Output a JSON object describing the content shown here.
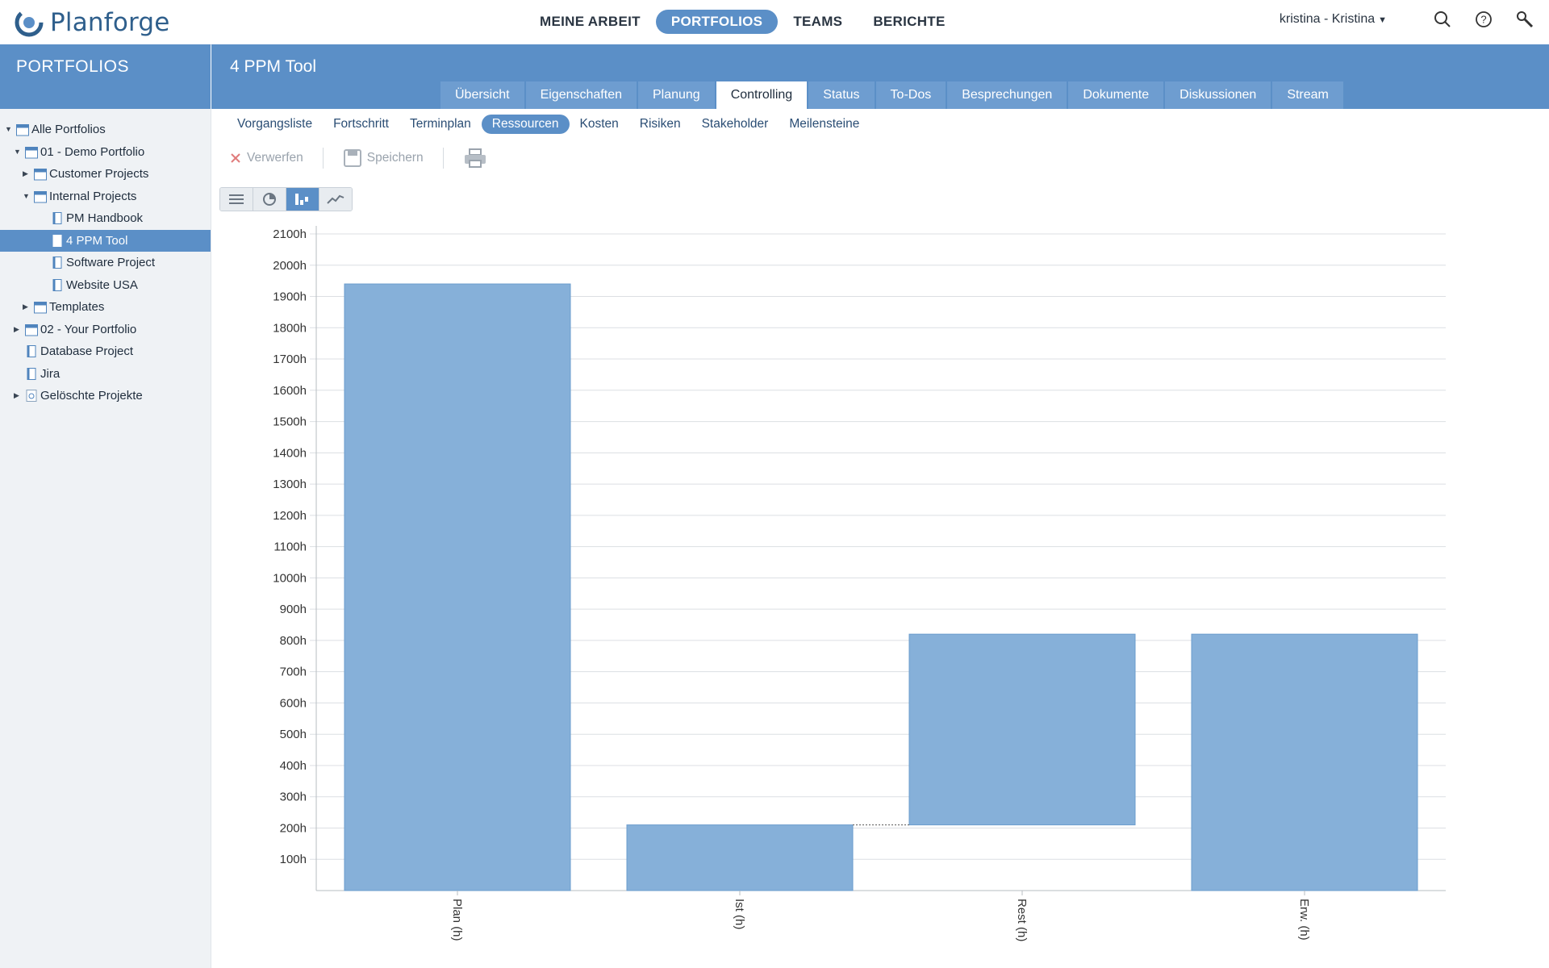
{
  "app": {
    "name": "Planforge"
  },
  "topnav": {
    "items": [
      "MEINE ARBEIT",
      "PORTFOLIOS",
      "TEAMS",
      "BERICHTE"
    ],
    "active": "PORTFOLIOS",
    "user": "kristina - Kristina"
  },
  "sidebar": {
    "title": "PORTFOLIOS",
    "tree": [
      {
        "label": "Alle Portfolios",
        "level": 0,
        "arrow": "down",
        "icon": "portfolio-icon"
      },
      {
        "label": "01 - Demo Portfolio",
        "level": 1,
        "arrow": "down",
        "icon": "portfolio-icon"
      },
      {
        "label": "Customer Projects",
        "level": 2,
        "arrow": "right",
        "icon": "portfolio-icon"
      },
      {
        "label": "Internal Projects",
        "level": 2,
        "arrow": "down",
        "icon": "portfolio-icon"
      },
      {
        "label": "PM Handbook",
        "level": 3,
        "arrow": "",
        "icon": "project-icon"
      },
      {
        "label": "4 PPM Tool",
        "level": 3,
        "arrow": "",
        "icon": "project-icon",
        "selected": true
      },
      {
        "label": "Software Project",
        "level": 3,
        "arrow": "",
        "icon": "project-icon"
      },
      {
        "label": "Website USA",
        "level": 3,
        "arrow": "",
        "icon": "project-icon"
      },
      {
        "label": "Templates",
        "level": 2,
        "arrow": "right",
        "icon": "portfolio-icon"
      },
      {
        "label": "02 - Your Portfolio",
        "level": 1,
        "arrow": "right",
        "icon": "portfolio-icon"
      },
      {
        "label": "Database Project",
        "level": 1,
        "arrow": "",
        "icon": "project-icon"
      },
      {
        "label": "Jira",
        "level": 1,
        "arrow": "",
        "icon": "project-icon"
      },
      {
        "label": "Gelöschte Projekte",
        "level": 1,
        "arrow": "right",
        "icon": "trash-project-icon"
      }
    ]
  },
  "project": {
    "title": "4 PPM Tool",
    "tabs": [
      "Übersicht",
      "Eigenschaften",
      "Planung",
      "Controlling",
      "Status",
      "To-Dos",
      "Besprechungen",
      "Dokumente",
      "Diskussionen",
      "Stream"
    ],
    "active_tab": "Controlling",
    "subtabs": [
      "Vorgangsliste",
      "Fortschritt",
      "Terminplan",
      "Ressourcen",
      "Kosten",
      "Risiken",
      "Stakeholder",
      "Meilensteine"
    ],
    "active_subtab": "Ressourcen"
  },
  "toolbar": {
    "discard_label": "Verwerfen",
    "save_label": "Speichern",
    "print_icon": "printer-icon"
  },
  "view_switch": {
    "buttons": [
      "list-icon",
      "pie-icon",
      "waterfall-icon",
      "line-icon"
    ],
    "active": "waterfall-icon"
  },
  "colors": {
    "accent": "#5b8fc7",
    "bar": "#86b0d9",
    "bar_stroke": "#6b9ccd"
  },
  "chart_data": {
    "type": "bar",
    "variant": "waterfall",
    "categories": [
      "Plan (h)",
      "Ist (h)",
      "Rest (h)",
      "Erw. (h)"
    ],
    "bars": [
      {
        "category": "Plan (h)",
        "from": 0,
        "to": 1940
      },
      {
        "category": "Ist (h)",
        "from": 0,
        "to": 210
      },
      {
        "category": "Rest (h)",
        "from": 210,
        "to": 820
      },
      {
        "category": "Erw. (h)",
        "from": 0,
        "to": 820
      }
    ],
    "connector": {
      "from_category": "Ist (h)",
      "to_category": "Rest (h)",
      "value": 210
    },
    "ylim": [
      0,
      2100
    ],
    "yticks": [
      100,
      200,
      300,
      400,
      500,
      600,
      700,
      800,
      900,
      1000,
      1100,
      1200,
      1300,
      1400,
      1500,
      1600,
      1700,
      1800,
      1900,
      2000,
      2100
    ],
    "tick_suffix": "h",
    "grid": true,
    "title": "",
    "xlabel": "",
    "ylabel": ""
  }
}
